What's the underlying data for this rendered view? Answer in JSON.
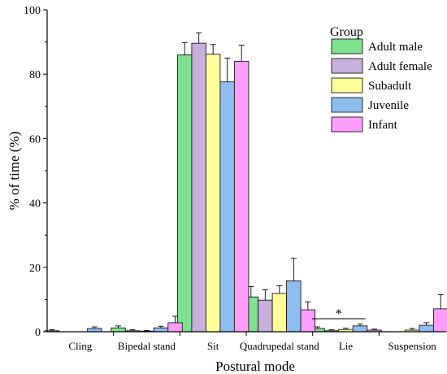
{
  "chart_data": {
    "type": "bar",
    "xlabel": "Postural mode",
    "ylabel": "% of time (%)",
    "ylim": [
      0,
      100
    ],
    "yticks": [
      0,
      20,
      40,
      60,
      80,
      100
    ],
    "grid": false,
    "legend_title": "Group",
    "legend_position": "top-right",
    "categories": [
      "Cling",
      "Bipedal stand",
      "Sit",
      "Quadrupedal stand",
      "Lie",
      "Suspension"
    ],
    "series": [
      {
        "name": "Adult male",
        "color": "#7fe08f",
        "values": [
          0.3,
          1.2,
          86.0,
          10.8,
          1.0,
          0.0
        ],
        "errors": [
          0.3,
          0.6,
          3.8,
          3.2,
          0.5,
          0.0
        ]
      },
      {
        "name": "Adult female",
        "color": "#c8b0dc",
        "values": [
          0.0,
          0.3,
          89.6,
          9.8,
          0.3,
          0.0
        ],
        "errors": [
          0.0,
          0.3,
          3.2,
          3.2,
          0.3,
          0.0
        ]
      },
      {
        "name": "Subadult",
        "color": "#ffff99",
        "values": [
          0.0,
          0.2,
          86.2,
          11.9,
          0.7,
          0.5
        ],
        "errors": [
          0.0,
          0.2,
          3.0,
          2.4,
          0.4,
          0.5
        ]
      },
      {
        "name": "Juvenile",
        "color": "#8ebdf0",
        "values": [
          1.0,
          1.2,
          77.6,
          15.8,
          1.8,
          2.0
        ],
        "errors": [
          0.5,
          0.5,
          7.4,
          7.0,
          0.6,
          0.8
        ]
      },
      {
        "name": "Infant",
        "color": "#ff9dfc",
        "values": [
          0.0,
          2.8,
          84.0,
          6.8,
          0.5,
          7.1
        ],
        "errors": [
          0.0,
          2.0,
          5.0,
          2.5,
          0.3,
          4.4
        ]
      }
    ],
    "annotations": [
      {
        "text": "*",
        "category": "Lie"
      }
    ]
  }
}
